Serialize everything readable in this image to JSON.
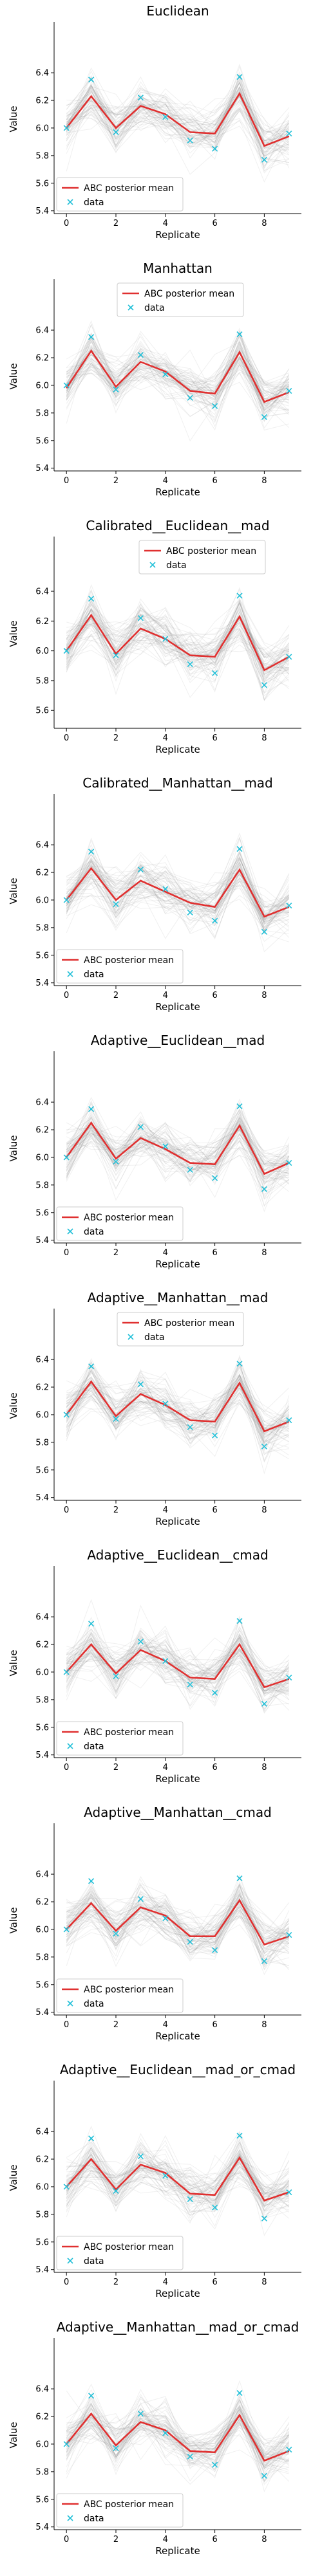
{
  "figure": {
    "xlabel": "Replicate",
    "ylabel": "Value",
    "legend_mean": "ABC posterior mean",
    "legend_data": "data",
    "colors": {
      "mean": "#e03030",
      "data": "#22c0d8",
      "samples": "#8a8a8a"
    }
  },
  "chart_data": [
    {
      "type": "line",
      "title": "Euclidean",
      "xlabel": "Replicate",
      "ylabel": "Value",
      "x": [
        0,
        1,
        2,
        3,
        4,
        5,
        6,
        7,
        8,
        9
      ],
      "xticks": [
        0,
        2,
        4,
        6,
        8
      ],
      "yticks": [
        5.4,
        5.6,
        5.8,
        6.0,
        6.2,
        6.4
      ],
      "ylim": [
        5.38,
        6.75
      ],
      "legend": "bottom-left",
      "series": [
        {
          "name": "ABC posterior mean",
          "values": [
            6.0,
            6.23,
            6.0,
            6.16,
            6.1,
            5.97,
            5.96,
            6.25,
            5.87,
            5.94
          ]
        },
        {
          "name": "data",
          "values": [
            6.0,
            6.35,
            5.97,
            6.22,
            6.08,
            5.91,
            5.85,
            6.37,
            5.77,
            5.96
          ]
        }
      ]
    },
    {
      "type": "line",
      "title": "Manhattan",
      "xlabel": "Replicate",
      "ylabel": "Value",
      "x": [
        0,
        1,
        2,
        3,
        4,
        5,
        6,
        7,
        8,
        9
      ],
      "xticks": [
        0,
        2,
        4,
        6,
        8
      ],
      "yticks": [
        5.4,
        5.6,
        5.8,
        6.0,
        6.2,
        6.4
      ],
      "ylim": [
        5.38,
        6.75
      ],
      "legend": "top-center",
      "series": [
        {
          "name": "ABC posterior mean",
          "values": [
            5.98,
            6.25,
            5.99,
            6.17,
            6.1,
            5.96,
            5.94,
            6.24,
            5.88,
            5.95
          ]
        },
        {
          "name": "data",
          "values": [
            6.0,
            6.35,
            5.97,
            6.22,
            6.08,
            5.91,
            5.85,
            6.37,
            5.77,
            5.96
          ]
        }
      ]
    },
    {
      "type": "line",
      "title": "Calibrated__Euclidean__mad",
      "xlabel": "Replicate",
      "ylabel": "Value",
      "x": [
        0,
        1,
        2,
        3,
        4,
        5,
        6,
        7,
        8,
        9
      ],
      "xticks": [
        0,
        2,
        4,
        6,
        8
      ],
      "yticks": [
        5.6,
        5.8,
        6.0,
        6.2,
        6.4
      ],
      "ylim": [
        5.48,
        6.75
      ],
      "legend": "top-right",
      "series": [
        {
          "name": "ABC posterior mean",
          "values": [
            6.0,
            6.24,
            5.98,
            6.15,
            6.08,
            5.97,
            5.96,
            6.23,
            5.87,
            5.96
          ]
        },
        {
          "name": "data",
          "values": [
            6.0,
            6.35,
            5.97,
            6.22,
            6.08,
            5.91,
            5.85,
            6.37,
            5.77,
            5.96
          ]
        }
      ]
    },
    {
      "type": "line",
      "title": "Calibrated__Manhattan__mad",
      "xlabel": "Replicate",
      "ylabel": "Value",
      "x": [
        0,
        1,
        2,
        3,
        4,
        5,
        6,
        7,
        8,
        9
      ],
      "xticks": [
        0,
        2,
        4,
        6,
        8
      ],
      "yticks": [
        5.4,
        5.6,
        5.8,
        6.0,
        6.2,
        6.4
      ],
      "ylim": [
        5.38,
        6.75
      ],
      "legend": "bottom-left",
      "series": [
        {
          "name": "ABC posterior mean",
          "values": [
            6.0,
            6.23,
            6.0,
            6.14,
            6.06,
            5.98,
            5.95,
            6.22,
            5.88,
            5.95
          ]
        },
        {
          "name": "data",
          "values": [
            6.0,
            6.35,
            5.97,
            6.22,
            6.08,
            5.91,
            5.85,
            6.37,
            5.77,
            5.96
          ]
        }
      ]
    },
    {
      "type": "line",
      "title": "Adaptive__Euclidean__mad",
      "xlabel": "Replicate",
      "ylabel": "Value",
      "x": [
        0,
        1,
        2,
        3,
        4,
        5,
        6,
        7,
        8,
        9
      ],
      "xticks": [
        0,
        2,
        4,
        6,
        8
      ],
      "yticks": [
        5.4,
        5.6,
        5.8,
        6.0,
        6.2,
        6.4
      ],
      "ylim": [
        5.38,
        6.75
      ],
      "legend": "bottom-left",
      "series": [
        {
          "name": "ABC posterior mean",
          "values": [
            6.0,
            6.25,
            5.99,
            6.14,
            6.06,
            5.96,
            5.95,
            6.23,
            5.88,
            5.96
          ]
        },
        {
          "name": "data",
          "values": [
            6.0,
            6.35,
            5.97,
            6.22,
            6.08,
            5.91,
            5.85,
            6.37,
            5.77,
            5.96
          ]
        }
      ]
    },
    {
      "type": "line",
      "title": "Adaptive__Manhattan__mad",
      "xlabel": "Replicate",
      "ylabel": "Value",
      "x": [
        0,
        1,
        2,
        3,
        4,
        5,
        6,
        7,
        8,
        9
      ],
      "xticks": [
        0,
        2,
        4,
        6,
        8
      ],
      "yticks": [
        5.4,
        5.6,
        5.8,
        6.0,
        6.2,
        6.4
      ],
      "ylim": [
        5.38,
        6.75
      ],
      "legend": "top-center",
      "series": [
        {
          "name": "ABC posterior mean",
          "values": [
            6.0,
            6.24,
            5.99,
            6.15,
            6.07,
            5.96,
            5.95,
            6.23,
            5.88,
            5.95
          ]
        },
        {
          "name": "data",
          "values": [
            6.0,
            6.35,
            5.97,
            6.22,
            6.08,
            5.91,
            5.85,
            6.37,
            5.77,
            5.96
          ]
        }
      ]
    },
    {
      "type": "line",
      "title": "Adaptive__Euclidean__cmad",
      "xlabel": "Replicate",
      "ylabel": "Value",
      "x": [
        0,
        1,
        2,
        3,
        4,
        5,
        6,
        7,
        8,
        9
      ],
      "xticks": [
        0,
        2,
        4,
        6,
        8
      ],
      "yticks": [
        5.4,
        5.6,
        5.8,
        6.0,
        6.2,
        6.4
      ],
      "ylim": [
        5.38,
        6.75
      ],
      "legend": "bottom-left",
      "series": [
        {
          "name": "ABC posterior mean",
          "values": [
            6.0,
            6.2,
            5.99,
            6.16,
            6.08,
            5.96,
            5.95,
            6.2,
            5.89,
            5.95
          ]
        },
        {
          "name": "data",
          "values": [
            6.0,
            6.35,
            5.97,
            6.22,
            6.08,
            5.91,
            5.85,
            6.37,
            5.77,
            5.96
          ]
        }
      ]
    },
    {
      "type": "line",
      "title": "Adaptive__Manhattan__cmad",
      "xlabel": "Replicate",
      "ylabel": "Value",
      "x": [
        0,
        1,
        2,
        3,
        4,
        5,
        6,
        7,
        8,
        9
      ],
      "xticks": [
        0,
        2,
        4,
        6,
        8
      ],
      "yticks": [
        5.4,
        5.6,
        5.8,
        6.0,
        6.2,
        6.4
      ],
      "ylim": [
        5.38,
        6.75
      ],
      "legend": "bottom-left",
      "series": [
        {
          "name": "ABC posterior mean",
          "values": [
            6.0,
            6.19,
            5.99,
            6.16,
            6.1,
            5.95,
            5.95,
            6.21,
            5.89,
            5.95
          ]
        },
        {
          "name": "data",
          "values": [
            6.0,
            6.35,
            5.97,
            6.22,
            6.08,
            5.91,
            5.85,
            6.37,
            5.77,
            5.96
          ]
        }
      ]
    },
    {
      "type": "line",
      "title": "Adaptive__Euclidean__mad_or_cmad",
      "xlabel": "Replicate",
      "ylabel": "Value",
      "x": [
        0,
        1,
        2,
        3,
        4,
        5,
        6,
        7,
        8,
        9
      ],
      "xticks": [
        0,
        2,
        4,
        6,
        8
      ],
      "yticks": [
        5.4,
        5.6,
        5.8,
        6.0,
        6.2,
        6.4
      ],
      "ylim": [
        5.38,
        6.75
      ],
      "legend": "bottom-left",
      "series": [
        {
          "name": "ABC posterior mean",
          "values": [
            6.0,
            6.2,
            5.98,
            6.16,
            6.1,
            5.95,
            5.94,
            6.21,
            5.9,
            5.96
          ]
        },
        {
          "name": "data",
          "values": [
            6.0,
            6.35,
            5.97,
            6.22,
            6.08,
            5.91,
            5.85,
            6.37,
            5.77,
            5.96
          ]
        }
      ]
    },
    {
      "type": "line",
      "title": "Adaptive__Manhattan__mad_or_cmad",
      "xlabel": "Replicate",
      "ylabel": "Value",
      "x": [
        0,
        1,
        2,
        3,
        4,
        5,
        6,
        7,
        8,
        9
      ],
      "xticks": [
        0,
        2,
        4,
        6,
        8
      ],
      "yticks": [
        5.4,
        5.6,
        5.8,
        6.0,
        6.2,
        6.4
      ],
      "ylim": [
        5.38,
        6.75
      ],
      "legend": "bottom-left",
      "series": [
        {
          "name": "ABC posterior mean",
          "values": [
            6.0,
            6.22,
            5.99,
            6.16,
            6.1,
            5.95,
            5.94,
            6.21,
            5.88,
            5.95
          ]
        },
        {
          "name": "data",
          "values": [
            6.0,
            6.35,
            5.97,
            6.22,
            6.08,
            5.91,
            5.85,
            6.37,
            5.77,
            5.96
          ]
        }
      ]
    }
  ]
}
